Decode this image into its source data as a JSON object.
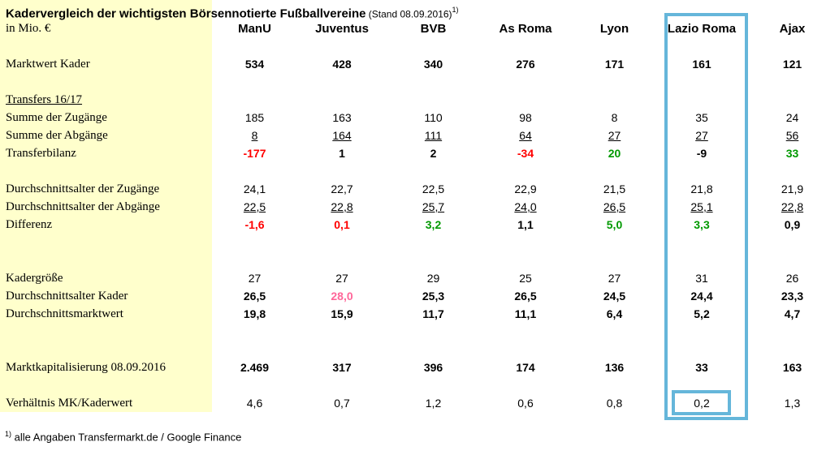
{
  "title": {
    "main": "Kadervergleich der wichtigsten Börsennotierte Fußballvereine",
    "stand": " (Stand 08.09.2016)",
    "footnote_marker": "1)",
    "unit": "in Mio. €"
  },
  "footnote": {
    "marker": "1)",
    "text": "alle Angaben Transfermarkt.de / Google Finance"
  },
  "colors": {
    "label_bg": "#FFFFCC",
    "highlight_border": "#65B6DA",
    "negative": "#FF0000",
    "positive": "#009900",
    "pink": "#FF6699"
  },
  "highlight": {
    "column": "Lazio Roma",
    "cell_row": "Verhältnis MK/Kaderwert",
    "cell_value": "0,2"
  },
  "chart_data": {
    "type": "table",
    "columns": [
      "ManU",
      "Juventus",
      "BVB",
      "As Roma",
      "Lyon",
      "Lazio Roma",
      "Ajax"
    ],
    "rows": [
      {
        "kind": "spacer"
      },
      {
        "kind": "data",
        "label": "Marktwert Kader",
        "bold": true,
        "values": [
          "534",
          "428",
          "340",
          "276",
          "171",
          "161",
          "121"
        ]
      },
      {
        "kind": "spacer"
      },
      {
        "kind": "data",
        "label": "Transfers 16/17",
        "underline_label": true,
        "values": []
      },
      {
        "kind": "data",
        "label": "Summe der Zugänge",
        "values": [
          "185",
          "163",
          "110",
          "98",
          "8",
          "35",
          "24"
        ]
      },
      {
        "kind": "data",
        "label": "Summe der Abgänge",
        "underline_values": true,
        "values": [
          "8",
          "164",
          "111",
          "64",
          "27",
          "27",
          "56"
        ]
      },
      {
        "kind": "data",
        "label": "Transferbilanz",
        "bold": true,
        "values": [
          "-177",
          "1",
          "2",
          "-34",
          "20",
          "-9",
          "33"
        ],
        "value_colors": [
          "negative",
          null,
          null,
          "negative",
          "positive",
          null,
          "positive"
        ]
      },
      {
        "kind": "spacer"
      },
      {
        "kind": "data",
        "label": "Durchschnittsalter der Zugänge",
        "values": [
          "24,1",
          "22,7",
          "22,5",
          "22,9",
          "21,5",
          "21,8",
          "21,9"
        ]
      },
      {
        "kind": "data",
        "label": "Durchschnittsalter der Abgänge",
        "underline_values": true,
        "values": [
          "22,5",
          "22,8",
          "25,7",
          "24,0",
          "26,5",
          "25,1",
          "22,8"
        ]
      },
      {
        "kind": "data",
        "label": "Differenz",
        "bold": true,
        "values": [
          "-1,6",
          "0,1",
          "3,2",
          "1,1",
          "5,0",
          "3,3",
          "0,9"
        ],
        "value_colors": [
          "negative",
          "negative",
          "positive",
          null,
          "positive",
          "positive",
          null
        ]
      },
      {
        "kind": "spacer"
      },
      {
        "kind": "spacer"
      },
      {
        "kind": "data",
        "label": "Kadergröße",
        "values": [
          "27",
          "27",
          "29",
          "25",
          "27",
          "31",
          "26"
        ]
      },
      {
        "kind": "data",
        "label": "Durchschnittsalter Kader",
        "bold": true,
        "values": [
          "26,5",
          "28,0",
          "25,3",
          "26,5",
          "24,5",
          "24,4",
          "23,3"
        ],
        "value_colors": [
          null,
          "pink",
          null,
          null,
          null,
          null,
          null
        ]
      },
      {
        "kind": "data",
        "label": "Durchschnittsmarktwert",
        "bold": true,
        "values": [
          "19,8",
          "15,9",
          "11,7",
          "11,1",
          "6,4",
          "5,2",
          "4,7"
        ]
      },
      {
        "kind": "spacer"
      },
      {
        "kind": "spacer"
      },
      {
        "kind": "data",
        "label": "Marktkapitalisierung 08.09.2016",
        "bold": true,
        "values": [
          "2.469",
          "317",
          "396",
          "174",
          "136",
          "33",
          "163"
        ]
      },
      {
        "kind": "spacer"
      },
      {
        "kind": "data",
        "label": "Verhältnis MK/Kaderwert",
        "values": [
          "4,6",
          "0,7",
          "1,2",
          "0,6",
          "0,8",
          "0,2",
          "1,3"
        ]
      }
    ]
  }
}
